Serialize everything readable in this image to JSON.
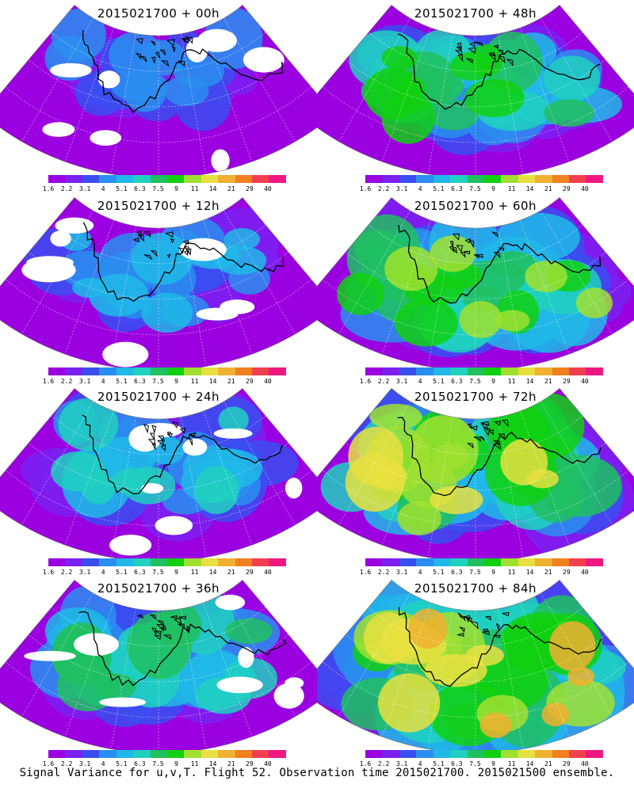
{
  "panels": [
    {
      "title": "2015021700 + 00h",
      "intensity": 0.15
    },
    {
      "title": "2015021700 + 48h",
      "intensity": 0.55
    },
    {
      "title": "2015021700 + 12h",
      "intensity": 0.25
    },
    {
      "title": "2015021700 + 60h",
      "intensity": 0.65
    },
    {
      "title": "2015021700 + 24h",
      "intensity": 0.35
    },
    {
      "title": "2015021700 + 72h",
      "intensity": 0.75
    },
    {
      "title": "2015021700 + 36h",
      "intensity": 0.45
    },
    {
      "title": "2015021700 + 84h",
      "intensity": 0.85
    }
  ],
  "colorbar": {
    "colors": [
      "#9b00e0",
      "#7a20f0",
      "#3a4ef0",
      "#2a8ef0",
      "#20b8e8",
      "#20d0c0",
      "#20c060",
      "#10d010",
      "#a0e030",
      "#e8e040",
      "#f0b030",
      "#f08020",
      "#f04050",
      "#f01880"
    ],
    "tick_labels": [
      "1.6",
      "2.2",
      "3.1",
      "4",
      "5.1",
      "6.3",
      "7.5",
      "9",
      "11",
      "14",
      "21",
      "29",
      "40"
    ]
  },
  "footer": "Signal Variance for u,v,T. Flight 52. Observation time 2015021700. 2015021500 ensemble.",
  "icons": {
    "coastline": "coastline-icon"
  }
}
